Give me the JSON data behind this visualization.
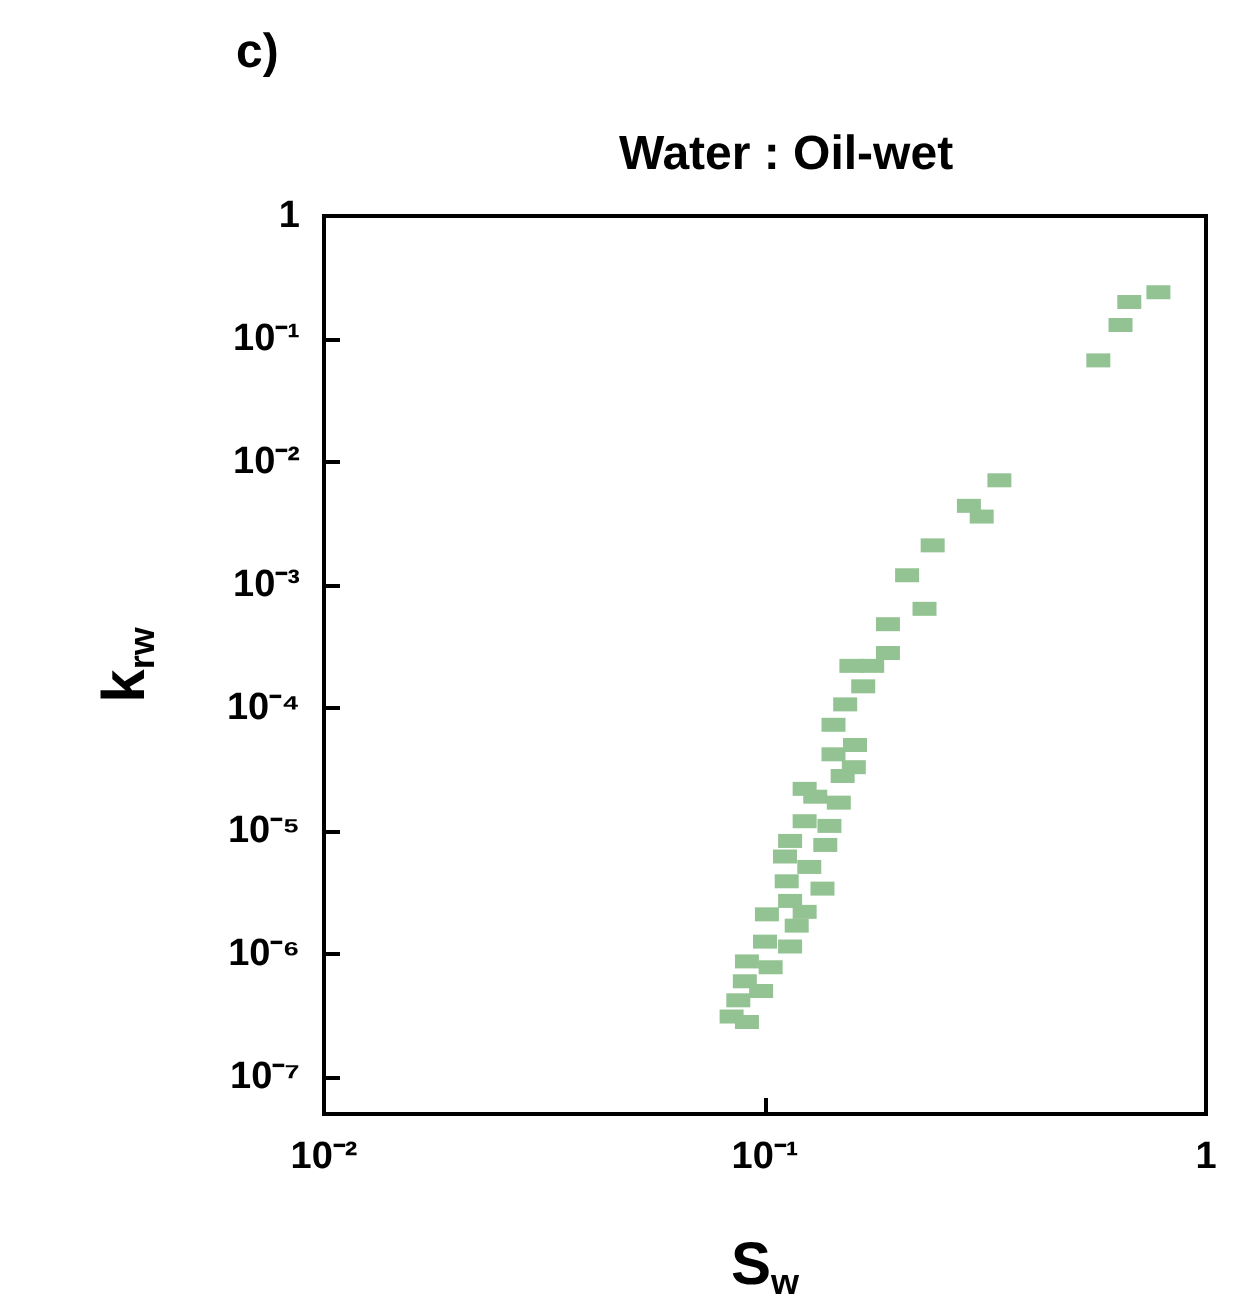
{
  "chart_data": {
    "type": "scatter",
    "title": "Water : Oil-wet",
    "xlabel": "S$_{w}$",
    "ylabel": "k$_{rw}$",
    "annotations": [
      "c)"
    ],
    "log": "xy",
    "grid": false,
    "marker": "square",
    "xlim": [
      0.01,
      1
    ],
    "ylim": [
      5e-08,
      1
    ],
    "xticks": [
      {
        "value": 0.01,
        "label": "10⁻²"
      },
      {
        "value": 0.1,
        "label": "10⁻¹"
      },
      1
    ],
    "yticks": [
      {
        "value": 1e-07,
        "label": "10⁻⁷"
      },
      {
        "value": 1e-06,
        "label": "10⁻⁶"
      },
      {
        "value": 1e-05,
        "label": "10⁻⁵"
      },
      {
        "value": 0.0001,
        "label": "10⁻⁴"
      },
      {
        "value": 0.001,
        "label": "10⁻³"
      },
      {
        "value": 0.01,
        "label": "10⁻²"
      },
      {
        "value": 0.1,
        "label": "10⁻¹"
      },
      1
    ],
    "series": [
      {
        "color": "#93c393",
        "x": [
          0.78,
          0.67,
          0.64,
          0.57,
          0.34,
          0.29,
          0.31,
          0.24,
          0.21,
          0.23,
          0.19,
          0.19,
          0.157,
          0.175,
          0.167,
          0.152,
          0.143,
          0.16,
          0.143,
          0.159,
          0.13,
          0.147,
          0.123,
          0.14,
          0.114,
          0.137,
          0.111,
          0.126,
          0.112,
          0.135,
          0.114,
          0.123,
          0.101,
          0.118,
          0.1,
          0.114,
          0.091,
          0.103,
          0.09,
          0.098,
          0.087,
          0.084,
          0.091,
          0.123,
          0.15
        ],
        "values": [
          0.24,
          0.2,
          0.13,
          0.067,
          0.0071,
          0.0044,
          0.0036,
          0.0021,
          0.0012,
          0.00064,
          0.00048,
          0.00028,
          0.00022,
          0.00022,
          0.00015,
          0.000107,
          7.3e-05,
          5e-05,
          4.2e-05,
          3.3e-05,
          1.9e-05,
          1.7e-05,
          1.2e-05,
          1.1e-05,
          8.3e-06,
          7.7e-06,
          6.2e-06,
          5.1e-06,
          3.9e-06,
          3.4e-06,
          2.7e-06,
          2.2e-06,
          2.1e-06,
          1.7e-06,
          1.26e-06,
          1.15e-06,
          8.7e-07,
          7.8e-07,
          6e-07,
          5e-07,
          4.2e-07,
          3.1e-07,
          2.8e-07,
          2.2e-05,
          2.8e-05
        ]
      }
    ]
  }
}
